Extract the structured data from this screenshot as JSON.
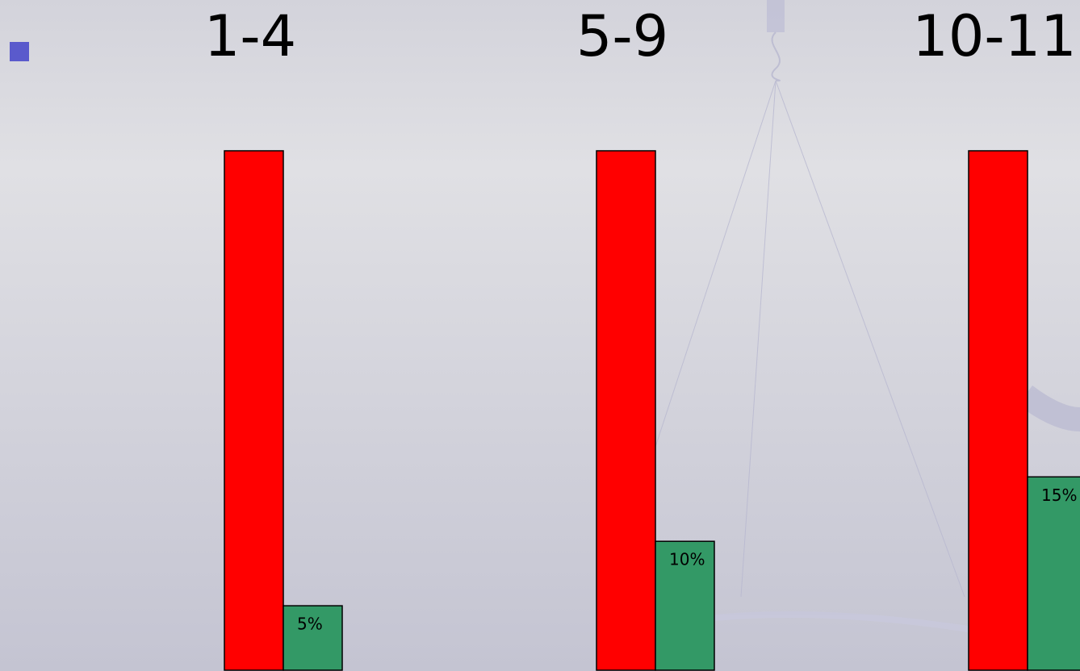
{
  "chart_data": {
    "type": "bar",
    "categories": [
      "1-4",
      "5-9",
      "10-11"
    ],
    "series": [
      {
        "color": "#ff0000",
        "values": [
          40.3,
          40.3,
          40.3
        ]
      },
      {
        "color": "#339966",
        "values": [
          5,
          10,
          15
        ],
        "value_labels": [
          "5%",
          "10%",
          "15%"
        ]
      }
    ],
    "ylim": [
      0,
      52
    ]
  }
}
